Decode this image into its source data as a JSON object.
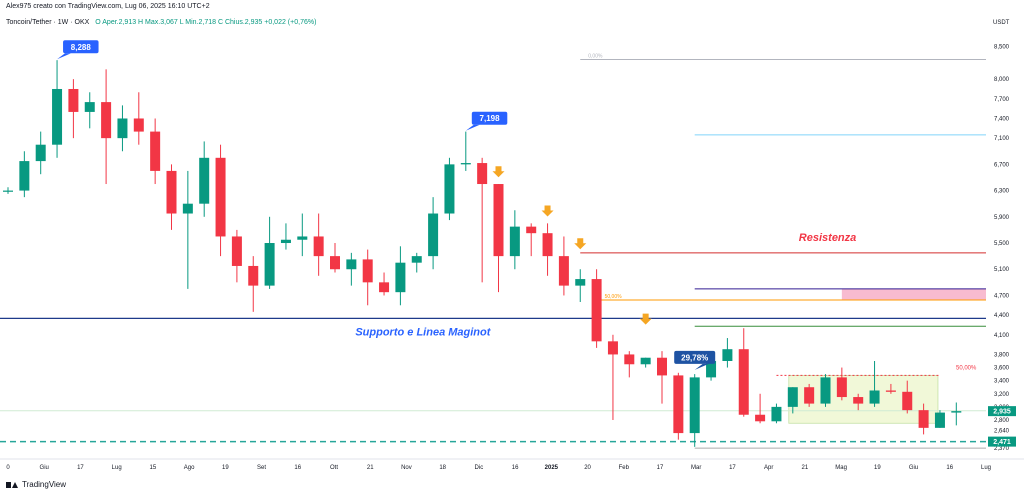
{
  "header": {
    "author_line": "Alex975 creato con TradingView.com, Lug 06, 2025 16:10 UTC+2",
    "symbol": "Toncoin/Tether",
    "interval": "1W",
    "exchange": "OKX",
    "ohlc": "O Aper.2,913 H Max.3,067 L Min.2,718 C Chius.2,935 +0,022 (+0,76%)"
  },
  "footer": {
    "brand": "TradingView"
  },
  "chart_data": {
    "type": "candlestick",
    "y_unit": "USDT",
    "ylim": [
      2.22,
      8.75
    ],
    "y_ticks": [
      "8,500",
      "8,000",
      "7,700",
      "7,400",
      "7,100",
      "6,700",
      "6,300",
      "5,900",
      "5,500",
      "5,100",
      "4,700",
      "4,400",
      "4,100",
      "3,800",
      "3,600",
      "3,400",
      "3,200",
      "3,000",
      "2,800",
      "2,640",
      "2,370"
    ],
    "x_ticks": [
      "0",
      "Giu",
      "17",
      "Lug",
      "15",
      "Ago",
      "19",
      "Set",
      "16",
      "Ott",
      "21",
      "Nov",
      "18",
      "Dic",
      "16",
      "2025",
      "20",
      "Feb",
      "17",
      "Mar",
      "17",
      "Apr",
      "21",
      "Mag",
      "19",
      "Giu",
      "16",
      "Lug"
    ],
    "colors": {
      "up": "#089981",
      "down": "#f23645"
    },
    "candles": [
      {
        "o": 6.3,
        "h": 6.35,
        "l": 6.25,
        "c": 6.3
      },
      {
        "o": 6.3,
        "h": 6.9,
        "l": 6.2,
        "c": 6.75
      },
      {
        "o": 6.75,
        "h": 7.2,
        "l": 6.55,
        "c": 7.0
      },
      {
        "o": 7.0,
        "h": 8.29,
        "l": 6.8,
        "c": 7.85
      },
      {
        "o": 7.85,
        "h": 8.0,
        "l": 7.1,
        "c": 7.5
      },
      {
        "o": 7.5,
        "h": 7.8,
        "l": 7.25,
        "c": 7.65
      },
      {
        "o": 7.65,
        "h": 8.15,
        "l": 6.4,
        "c": 7.1
      },
      {
        "o": 7.1,
        "h": 7.6,
        "l": 6.9,
        "c": 7.4
      },
      {
        "o": 7.4,
        "h": 7.8,
        "l": 7.0,
        "c": 7.2
      },
      {
        "o": 7.2,
        "h": 7.4,
        "l": 6.4,
        "c": 6.6
      },
      {
        "o": 6.6,
        "h": 6.7,
        "l": 5.7,
        "c": 5.95
      },
      {
        "o": 5.95,
        "h": 6.6,
        "l": 4.8,
        "c": 6.1
      },
      {
        "o": 6.1,
        "h": 7.05,
        "l": 5.9,
        "c": 6.8
      },
      {
        "o": 6.8,
        "h": 7.0,
        "l": 5.3,
        "c": 5.6
      },
      {
        "o": 5.6,
        "h": 5.7,
        "l": 4.9,
        "c": 5.15
      },
      {
        "o": 5.15,
        "h": 5.3,
        "l": 4.45,
        "c": 4.85
      },
      {
        "o": 4.85,
        "h": 5.9,
        "l": 4.8,
        "c": 5.5
      },
      {
        "o": 5.5,
        "h": 5.8,
        "l": 5.4,
        "c": 5.55
      },
      {
        "o": 5.55,
        "h": 5.95,
        "l": 5.3,
        "c": 5.6
      },
      {
        "o": 5.6,
        "h": 5.95,
        "l": 5.0,
        "c": 5.3
      },
      {
        "o": 5.3,
        "h": 5.5,
        "l": 5.05,
        "c": 5.1
      },
      {
        "o": 5.1,
        "h": 5.35,
        "l": 4.85,
        "c": 5.25
      },
      {
        "o": 5.25,
        "h": 5.4,
        "l": 4.55,
        "c": 4.9
      },
      {
        "o": 4.9,
        "h": 5.05,
        "l": 4.7,
        "c": 4.75
      },
      {
        "o": 4.75,
        "h": 5.45,
        "l": 4.55,
        "c": 5.2
      },
      {
        "o": 5.2,
        "h": 5.35,
        "l": 5.05,
        "c": 5.3
      },
      {
        "o": 5.3,
        "h": 6.2,
        "l": 5.1,
        "c": 5.95
      },
      {
        "o": 5.95,
        "h": 6.8,
        "l": 5.85,
        "c": 6.7
      },
      {
        "o": 6.7,
        "h": 7.2,
        "l": 6.6,
        "c": 6.72
      },
      {
        "o": 6.72,
        "h": 6.8,
        "l": 4.9,
        "c": 6.4
      },
      {
        "o": 6.4,
        "h": 6.4,
        "l": 4.75,
        "c": 5.3
      },
      {
        "o": 5.3,
        "h": 6.0,
        "l": 5.1,
        "c": 5.75
      },
      {
        "o": 5.75,
        "h": 5.8,
        "l": 5.3,
        "c": 5.65
      },
      {
        "o": 5.65,
        "h": 5.8,
        "l": 5.0,
        "c": 5.3
      },
      {
        "o": 5.3,
        "h": 5.6,
        "l": 4.7,
        "c": 4.85
      },
      {
        "o": 4.85,
        "h": 5.1,
        "l": 4.6,
        "c": 4.95
      },
      {
        "o": 4.95,
        "h": 5.1,
        "l": 3.9,
        "c": 4.0
      },
      {
        "o": 4.0,
        "h": 4.1,
        "l": 2.8,
        "c": 3.8
      },
      {
        "o": 3.8,
        "h": 3.85,
        "l": 3.45,
        "c": 3.65
      },
      {
        "o": 3.65,
        "h": 3.75,
        "l": 3.6,
        "c": 3.75
      },
      {
        "o": 3.75,
        "h": 3.85,
        "l": 3.05,
        "c": 3.48
      },
      {
        "o": 3.48,
        "h": 3.52,
        "l": 2.5,
        "c": 2.6
      },
      {
        "o": 2.6,
        "h": 3.5,
        "l": 2.39,
        "c": 3.45
      },
      {
        "o": 3.45,
        "h": 3.75,
        "l": 3.4,
        "c": 3.7
      },
      {
        "o": 3.7,
        "h": 4.05,
        "l": 3.6,
        "c": 3.88
      },
      {
        "o": 3.88,
        "h": 4.2,
        "l": 2.85,
        "c": 2.88
      },
      {
        "o": 2.88,
        "h": 3.2,
        "l": 2.75,
        "c": 2.78
      },
      {
        "o": 2.78,
        "h": 3.05,
        "l": 2.75,
        "c": 3.0
      },
      {
        "o": 3.0,
        "h": 3.3,
        "l": 2.9,
        "c": 3.3
      },
      {
        "o": 3.3,
        "h": 3.35,
        "l": 3.0,
        "c": 3.05
      },
      {
        "o": 3.05,
        "h": 3.5,
        "l": 3.0,
        "c": 3.45
      },
      {
        "o": 3.45,
        "h": 3.6,
        "l": 3.1,
        "c": 3.15
      },
      {
        "o": 3.15,
        "h": 3.2,
        "l": 2.95,
        "c": 3.05
      },
      {
        "o": 3.05,
        "h": 3.7,
        "l": 3.0,
        "c": 3.25
      },
      {
        "o": 3.25,
        "h": 3.35,
        "l": 3.2,
        "c": 3.23
      },
      {
        "o": 3.23,
        "h": 3.4,
        "l": 2.9,
        "c": 2.95
      },
      {
        "o": 2.95,
        "h": 3.05,
        "l": 2.58,
        "c": 2.68
      },
      {
        "o": 2.68,
        "h": 2.95,
        "l": 2.68,
        "c": 2.913
      },
      {
        "o": 2.913,
        "h": 3.067,
        "l": 2.718,
        "c": 2.935
      }
    ],
    "annotations": [
      {
        "text": "Resistenza",
        "price": 5.35
      },
      {
        "text": "Supporto e Linea Maginot",
        "price": 4.35
      }
    ],
    "callouts": [
      {
        "text": "8,288",
        "bar": 3,
        "price": 8.288,
        "color": "#2962ff"
      },
      {
        "text": "7,198",
        "bar": 28,
        "price": 7.198,
        "color": "#2962ff"
      },
      {
        "text": "29,78%",
        "bar": 42,
        "price": 3.55,
        "color": "#1e53a3"
      }
    ],
    "arrows": [
      {
        "bar": 30,
        "price": 6.55
      },
      {
        "bar": 33,
        "price": 5.95
      },
      {
        "bar": 35,
        "price": 5.45
      },
      {
        "bar": 39,
        "price": 4.3
      }
    ],
    "hlines": [
      {
        "price": 8.3,
        "from": 35,
        "color": "#b2b5be",
        "label": "0,00%"
      },
      {
        "price": 7.15,
        "from": 42,
        "color": "#81d4fa"
      },
      {
        "price": 5.35,
        "from": 35,
        "color": "#d32f2f"
      },
      {
        "price": 4.8,
        "from": 42,
        "color": "#311b92"
      },
      {
        "price": 4.63,
        "from": 36,
        "color": "#ff9800",
        "label": "50,00%"
      },
      {
        "price": 4.35,
        "from": -1,
        "color": "#1e3a8a"
      },
      {
        "price": 4.23,
        "from": 42,
        "color": "#388e3c"
      },
      {
        "price": 2.94,
        "from": -1,
        "color": "#d0ebd4"
      },
      {
        "price": 2.37,
        "from": 42,
        "color": "#ababab"
      }
    ],
    "price_labels": [
      {
        "text": "2,935",
        "price": 2.935,
        "color": "#089981"
      },
      {
        "text": "2,471",
        "price": 2.47,
        "color": "#089981"
      }
    ]
  }
}
